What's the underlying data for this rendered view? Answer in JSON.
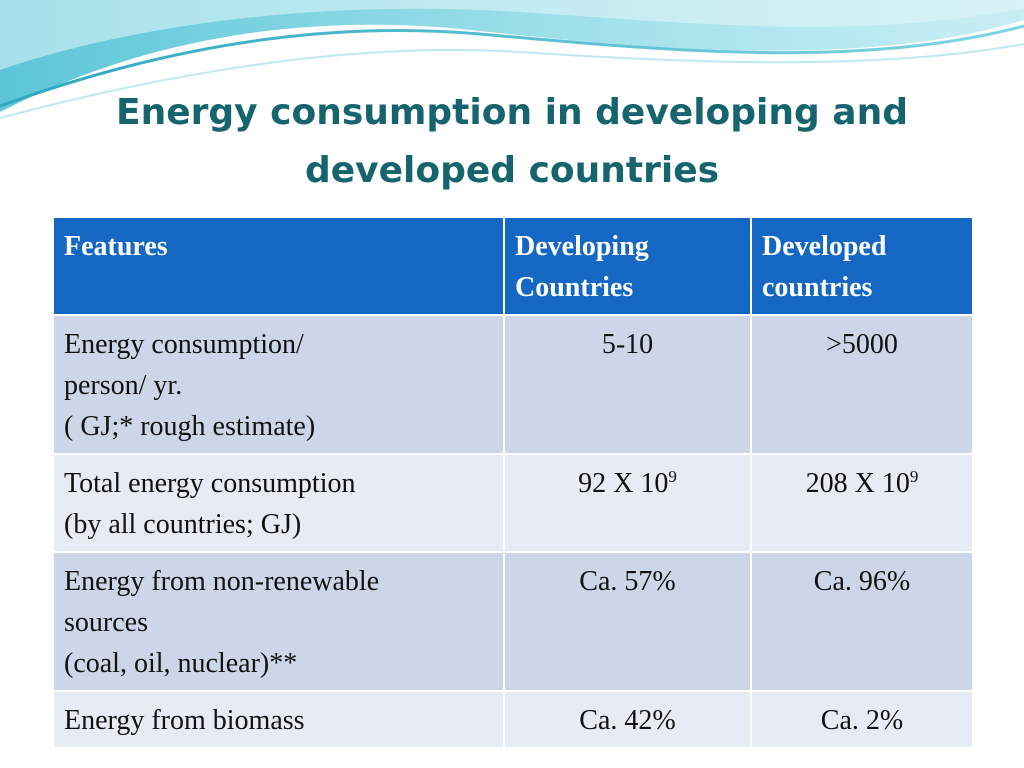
{
  "slide": {
    "title_lines": [
      "Energy consumption in developing and",
      "developed countries"
    ]
  },
  "table": {
    "headers": [
      {
        "lines": [
          "Features"
        ]
      },
      {
        "lines": [
          "Developing",
          "Countries"
        ]
      },
      {
        "lines": [
          "Developed",
          "countries"
        ]
      }
    ],
    "rows": [
      {
        "feature_lines": [
          "Energy consumption/",
          "person/ yr.",
          "( GJ;* rough estimate)"
        ],
        "developing": {
          "base": "5-10",
          "exponent": ""
        },
        "developed": {
          "base": ">5000",
          "exponent": ""
        }
      },
      {
        "feature_lines": [
          "Total energy consumption",
          "(by all countries; GJ)"
        ],
        "developing": {
          "base": "92 X 10",
          "exponent": "9"
        },
        "developed": {
          "base": "208 X 10",
          "exponent": "9"
        }
      },
      {
        "feature_lines": [
          "Energy from non-renewable",
          "sources",
          "(coal, oil, nuclear)**"
        ],
        "developing": {
          "base": "Ca. 57%",
          "exponent": ""
        },
        "developed": {
          "base": "Ca. 96%",
          "exponent": ""
        }
      },
      {
        "feature_lines": [
          "Energy from biomass"
        ],
        "developing": {
          "base": "Ca. 42%",
          "exponent": ""
        },
        "developed": {
          "base": "Ca. 2%",
          "exponent": ""
        }
      }
    ]
  },
  "colors": {
    "title": "#16646e",
    "header_bg": "#1468c4",
    "row_odd_bg": "#cdd5e8",
    "row_even_bg": "#e7ebf4",
    "wave_light": "#c9eef4",
    "wave_dark": "#5cc6d8"
  }
}
